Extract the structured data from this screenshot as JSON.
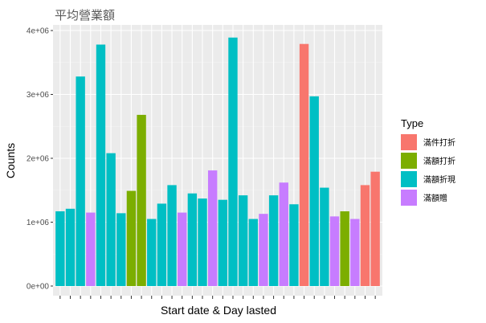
{
  "chart_data": {
    "type": "bar",
    "title": "平均營業額",
    "xlabel": "Start date & Day lasted",
    "ylabel": "Counts",
    "ylim": [
      0,
      4100000
    ],
    "y_ticks": [
      {
        "value": 0,
        "label": "0e+00"
      },
      {
        "value": 1000000,
        "label": "1e+06"
      },
      {
        "value": 2000000,
        "label": "2e+06"
      },
      {
        "value": 3000000,
        "label": "3e+06"
      },
      {
        "value": 4000000,
        "label": "4e+06"
      }
    ],
    "grid": true,
    "background": "#ebebeb",
    "legend": {
      "title": "Type",
      "placement": "right",
      "entries": [
        {
          "name": "滿件打折",
          "color": "#f8766d"
        },
        {
          "name": "滿額打折",
          "color": "#7cae00"
        },
        {
          "name": "滿額折現",
          "color": "#00bfc4"
        },
        {
          "name": "滿額贈",
          "color": "#c77cff"
        }
      ]
    },
    "values": [
      1170000,
      1210000,
      3280000,
      1150000,
      3780000,
      2080000,
      1140000,
      1490000,
      2680000,
      1050000,
      1290000,
      1580000,
      1150000,
      1450000,
      1370000,
      1810000,
      1350000,
      3890000,
      1420000,
      1050000,
      1130000,
      1420000,
      1620000,
      1280000,
      3790000,
      2970000,
      1540000,
      1090000,
      1170000,
      1050000,
      1580000,
      1790000
    ],
    "types": [
      2,
      2,
      2,
      3,
      2,
      2,
      2,
      1,
      1,
      2,
      2,
      2,
      3,
      2,
      2,
      3,
      2,
      2,
      2,
      2,
      3,
      2,
      3,
      2,
      0,
      2,
      2,
      3,
      1,
      3,
      0,
      0
    ]
  }
}
